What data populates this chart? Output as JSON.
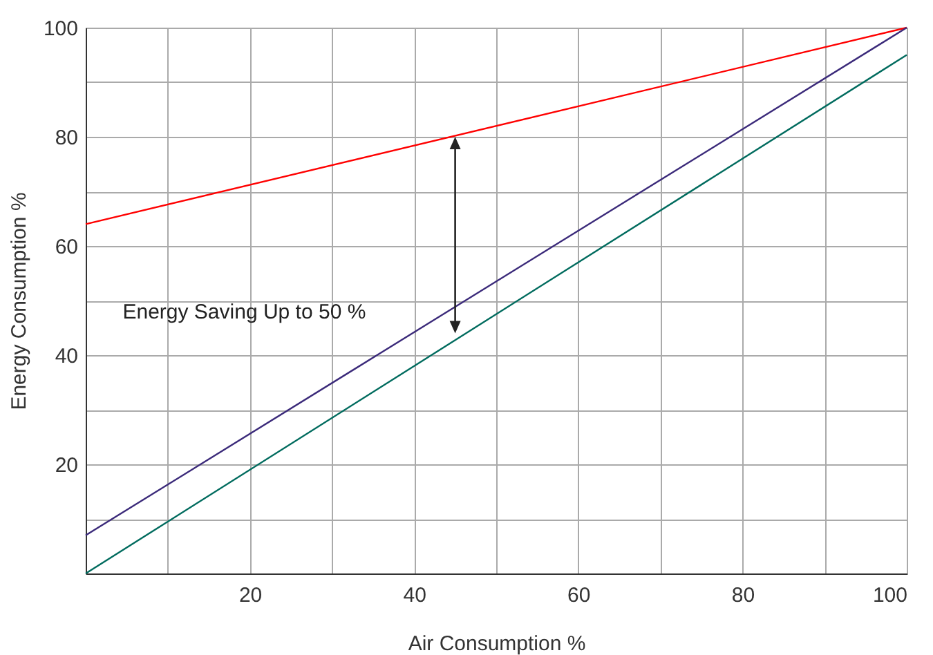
{
  "chart_data": {
    "type": "line",
    "xlabel": "Air Consumption %",
    "ylabel": "Energy Consumption %",
    "xlim": [
      0,
      100
    ],
    "ylim": [
      0,
      100
    ],
    "xticks": [
      {
        "value": 0,
        "label": null
      },
      {
        "value": 10,
        "label": null
      },
      20,
      {
        "value": 30,
        "label": null
      },
      40,
      {
        "value": 50,
        "label": null
      },
      60,
      {
        "value": 70,
        "label": null
      },
      80,
      {
        "value": 90,
        "label": null
      },
      100
    ],
    "yticks": [
      {
        "value": 0,
        "label": null
      },
      {
        "value": 10,
        "label": null
      },
      20,
      {
        "value": 30,
        "label": null
      },
      40,
      {
        "value": 50,
        "label": null
      },
      60,
      {
        "value": 70,
        "label": null
      },
      80,
      {
        "value": 90,
        "label": null
      },
      100
    ],
    "grid": true,
    "line_style": "solid",
    "x": [
      0,
      100
    ],
    "series": [
      {
        "color": "#ff0000",
        "values": [
          64,
          100
        ]
      },
      {
        "color": "#3b2a7a",
        "values": [
          7,
          100
        ]
      },
      {
        "color": "#006b5e",
        "values": [
          0,
          95
        ]
      }
    ],
    "annotations": [
      "Energy Saving Up to 50 %"
    ]
  }
}
